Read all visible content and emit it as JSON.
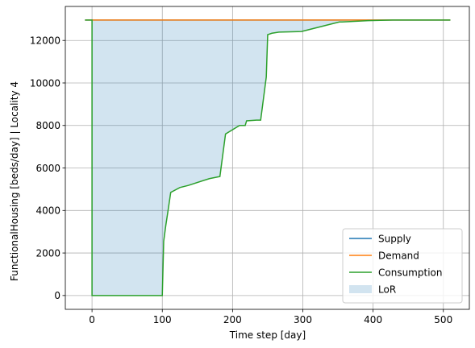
{
  "chart_data": {
    "type": "line",
    "title": "",
    "xlabel": "Time step [day]",
    "ylabel": "FunctionalHousing [beds/day] | Locality 4",
    "xlim": [
      -38,
      537
    ],
    "ylim": [
      -650,
      13600
    ],
    "xticks": [
      0,
      100,
      200,
      300,
      400,
      500
    ],
    "yticks": [
      0,
      2000,
      4000,
      6000,
      8000,
      10000,
      12000
    ],
    "grid": true,
    "legend_position": "lower right",
    "series": [
      {
        "name": "Supply",
        "kind": "line",
        "color": "#1f77b4",
        "x": [
          -10,
          510
        ],
        "y": [
          12960,
          12960
        ]
      },
      {
        "name": "Demand",
        "kind": "line",
        "color": "#ff7f0e",
        "x": [
          -10,
          510
        ],
        "y": [
          12960,
          12960
        ]
      },
      {
        "name": "Consumption",
        "kind": "step",
        "color": "#2ca02c",
        "x": [
          -10,
          0,
          0,
          100,
          102,
          105,
          108,
          112,
          125,
          137,
          167,
          182,
          190,
          205,
          210,
          218,
          220,
          234,
          240,
          248,
          250,
          256,
          266,
          298,
          352,
          356,
          393,
          428,
          510
        ],
        "y": [
          12960,
          12960,
          0,
          0,
          2550,
          3300,
          3950,
          4850,
          5080,
          5180,
          5500,
          5600,
          7600,
          7900,
          8000,
          8000,
          8220,
          8250,
          8250,
          10280,
          12270,
          12340,
          12390,
          12420,
          12870,
          12870,
          12930,
          12960,
          12960
        ]
      },
      {
        "name": "LoR",
        "kind": "fill",
        "color": "#1f77b4",
        "opacity": 0.2
      }
    ]
  }
}
